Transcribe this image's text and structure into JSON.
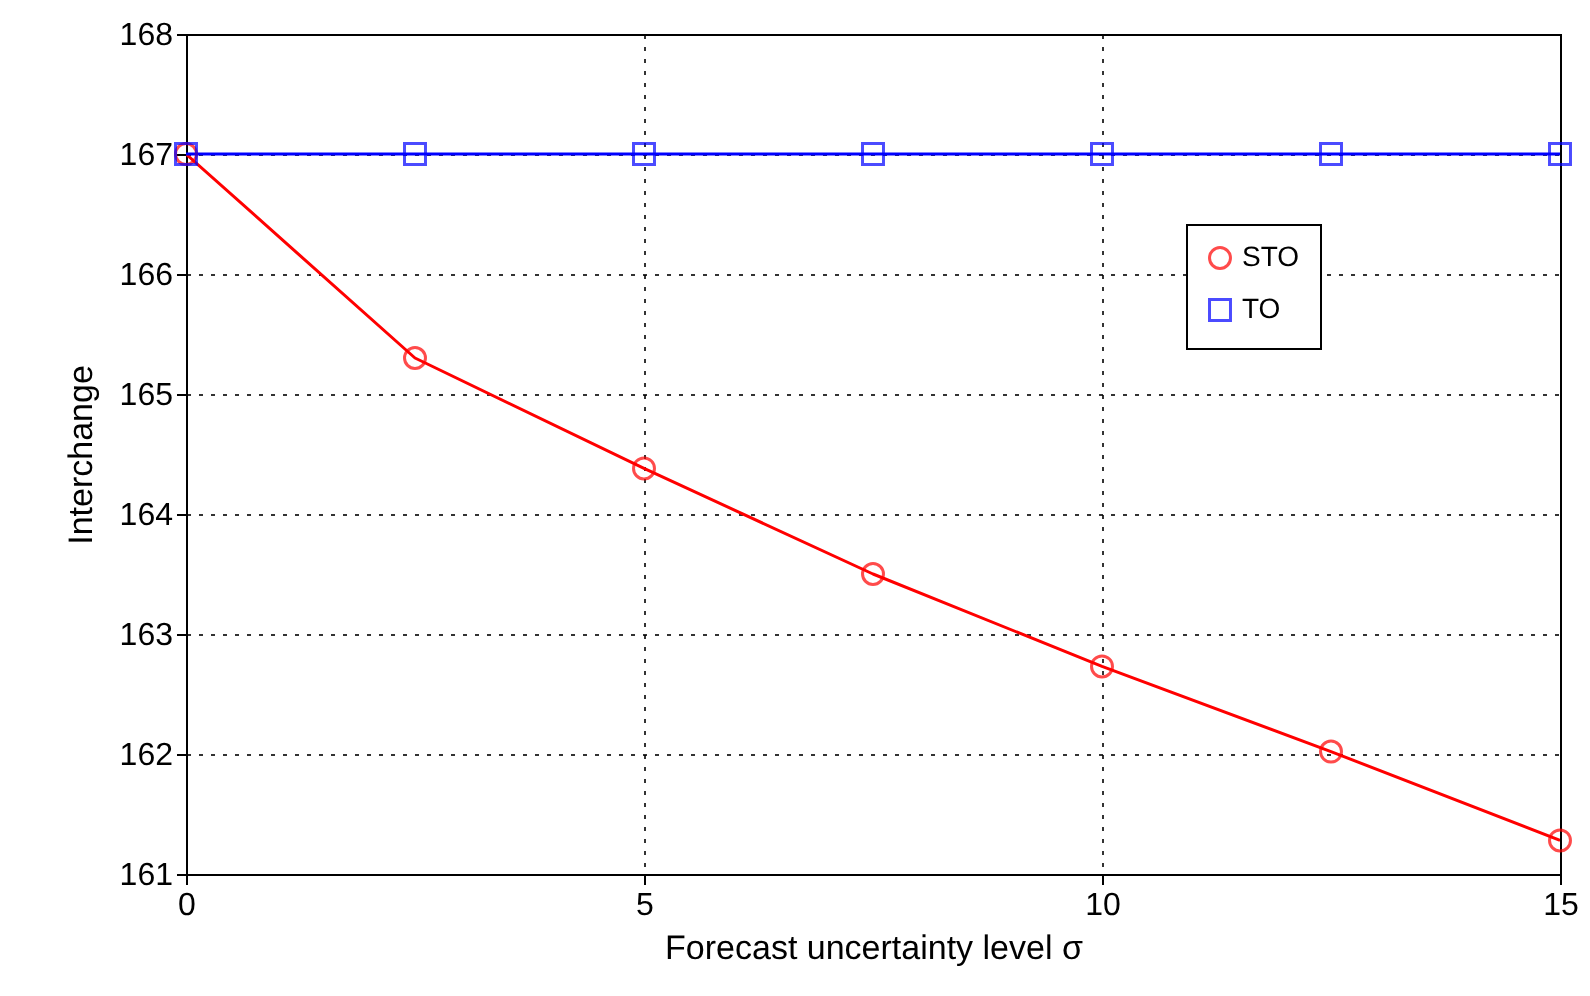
{
  "chart_data": {
    "type": "line",
    "xlabel": "Forecast uncertainty level σ",
    "ylabel": "Interchange",
    "x": [
      0,
      2.5,
      5,
      7.5,
      10,
      12.5,
      15
    ],
    "series": [
      {
        "name": "STO",
        "color": "#ff0000",
        "marker": "circle",
        "values": [
          167,
          165.3,
          164.38,
          163.5,
          162.73,
          162.02,
          161.28
        ]
      },
      {
        "name": "TO",
        "color": "#0000ff",
        "marker": "square",
        "values": [
          167,
          167,
          167,
          167,
          167,
          167,
          167
        ]
      }
    ],
    "xlim": [
      0,
      15
    ],
    "xticks": [
      0,
      5,
      10,
      15
    ],
    "ylim": [
      161,
      168
    ],
    "yticks": [
      161,
      162,
      163,
      164,
      165,
      166,
      167,
      168
    ],
    "grid": true,
    "legend": "top right",
    "line_style": "solid"
  }
}
